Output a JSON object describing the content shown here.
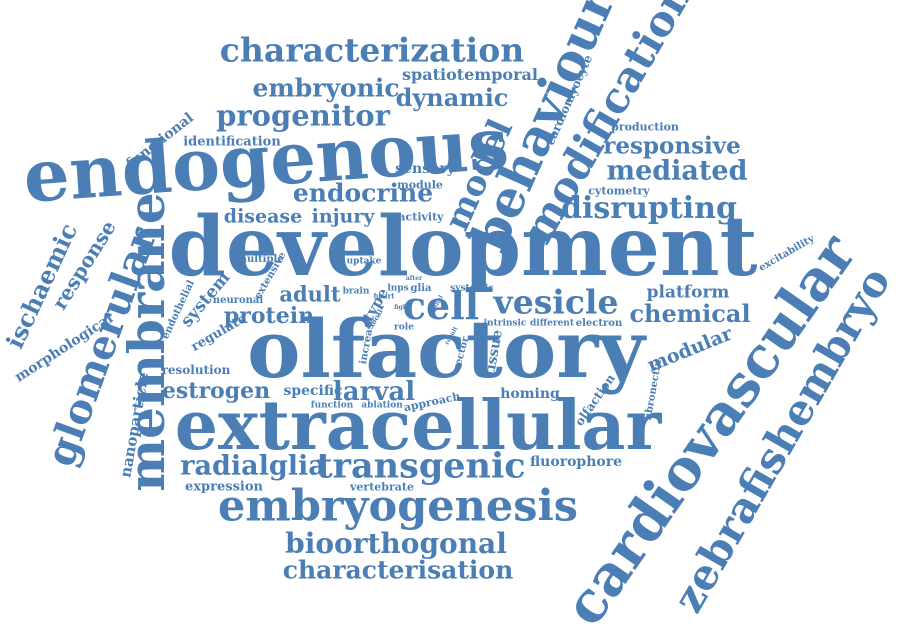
{
  "color": "#4a7eb5",
  "words": [
    "characterization",
    "embryonic",
    "spatiotemporal",
    "progenitor",
    "dynamic",
    "endogenous",
    "behaviour",
    "modification",
    "cardiomyocyte",
    "production",
    "responsive",
    "mediated",
    "cytometry",
    "disrupting",
    "identification",
    "functional",
    "sensory",
    "model",
    "module",
    "endocrine",
    "disease",
    "injury",
    "activity",
    "development",
    "membrane",
    "response",
    "ischaemic",
    "glomerular",
    "morphological",
    "multiple",
    "extensive",
    "uptake",
    "adult",
    "brain",
    "heart",
    "lnps",
    "glia",
    "after",
    "systemic",
    "fight",
    "spinal",
    "cell",
    "vesicle",
    "platform",
    "excitability",
    "system",
    "endothelial",
    "neuronal",
    "protein",
    "type",
    "local",
    "role",
    "tissue",
    "intrinsic",
    "different",
    "electron",
    "chemical",
    "regulate",
    "increase",
    "vector",
    "olfactory",
    "modular",
    "fibronectin",
    "nanoparticle",
    "resolution",
    "estrogen",
    "specific",
    "larval",
    "homing",
    "olfaction",
    "function",
    "ablation",
    "approach",
    "extracellular",
    "cardiovascular",
    "zebrafishembryo",
    "radialglia",
    "transgenic",
    "fluorophore",
    "expression",
    "vertebrate",
    "embryogenesis",
    "bioorthogonal",
    "characterisation",
    "result"
  ]
}
